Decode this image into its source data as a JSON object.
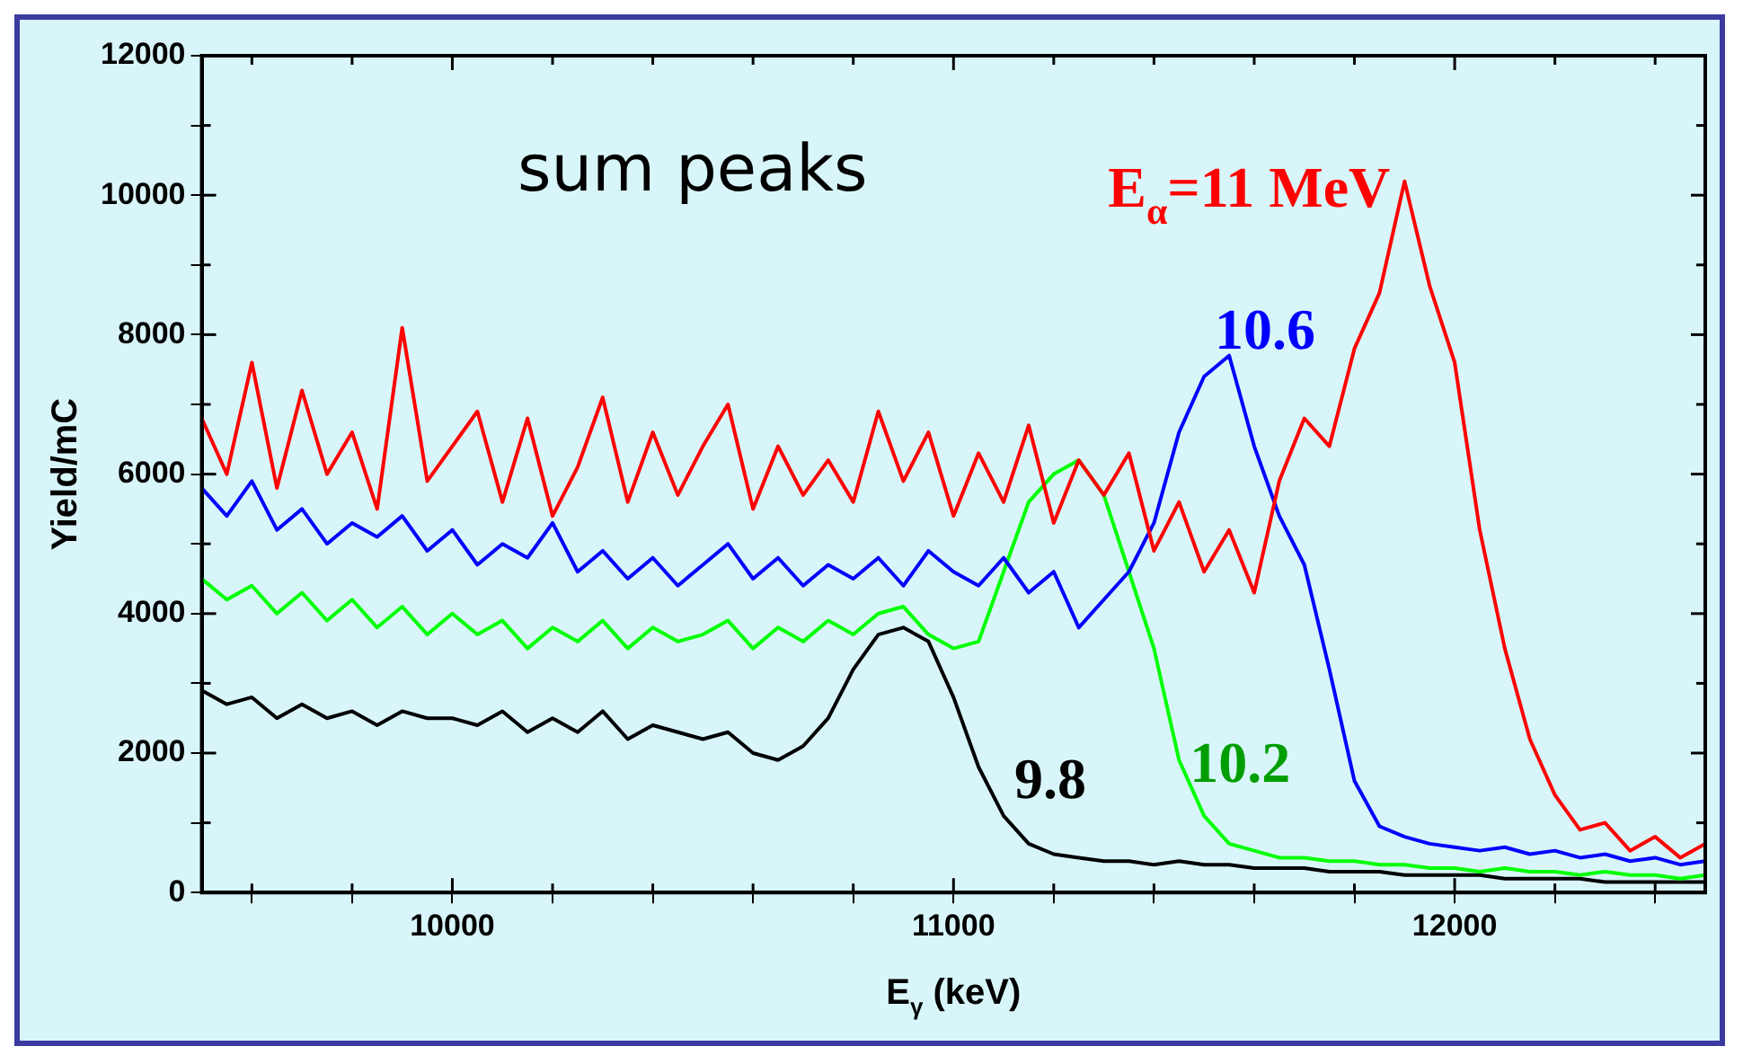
{
  "chart_data": {
    "type": "line",
    "title": "sum peaks",
    "xlabel": "E$_{γ}$ (keV)",
    "ylabel": "Yield/mC",
    "x": [
      9500,
      9550,
      9600,
      9650,
      9700,
      9750,
      9800,
      9850,
      9900,
      9950,
      10000,
      10050,
      10100,
      10150,
      10200,
      10250,
      10300,
      10350,
      10400,
      10450,
      10500,
      10550,
      10600,
      10650,
      10700,
      10750,
      10800,
      10850,
      10900,
      10950,
      11000,
      11050,
      11100,
      11150,
      11200,
      11250,
      11300,
      11350,
      11400,
      11450,
      11500,
      11550,
      11600,
      11650,
      11700,
      11750,
      11800,
      11850,
      11900,
      11950,
      12000,
      12050,
      12100,
      12150,
      12200,
      12250,
      12300,
      12350,
      12400,
      12450,
      12500
    ],
    "series": [
      {
        "name": "E$_{α}$=11 MeV",
        "color": "#ff0000",
        "values": [
          6800,
          6000,
          7600,
          5800,
          7200,
          6000,
          6600,
          5500,
          8100,
          5900,
          6400,
          6900,
          5600,
          6800,
          5400,
          6100,
          7100,
          5600,
          6600,
          5700,
          6400,
          7000,
          5500,
          6400,
          5700,
          6200,
          5600,
          6900,
          5900,
          6600,
          5400,
          6300,
          5600,
          6700,
          5300,
          6200,
          5700,
          6300,
          4900,
          5600,
          4600,
          5200,
          4300,
          5900,
          6800,
          6400,
          7800,
          8600,
          10200,
          8700,
          7600,
          5200,
          3500,
          2200,
          1400,
          900,
          1000,
          600,
          800,
          500,
          700
        ]
      },
      {
        "name": "10.6",
        "color": "#0000ff",
        "values": [
          5800,
          5400,
          5900,
          5200,
          5500,
          5000,
          5300,
          5100,
          5400,
          4900,
          5200,
          4700,
          5000,
          4800,
          5300,
          4600,
          4900,
          4500,
          4800,
          4400,
          4700,
          5000,
          4500,
          4800,
          4400,
          4700,
          4500,
          4800,
          4400,
          4900,
          4600,
          4400,
          4800,
          4300,
          4600,
          3800,
          4200,
          4600,
          5300,
          6600,
          7400,
          7700,
          6400,
          5400,
          4700,
          3200,
          1600,
          950,
          800,
          700,
          650,
          600,
          650,
          550,
          600,
          500,
          550,
          450,
          500,
          400,
          450
        ]
      },
      {
        "name": "10.2",
        "color": "#00ff00",
        "values": [
          4500,
          4200,
          4400,
          4000,
          4300,
          3900,
          4200,
          3800,
          4100,
          3700,
          4000,
          3700,
          3900,
          3500,
          3800,
          3600,
          3900,
          3500,
          3800,
          3600,
          3700,
          3900,
          3500,
          3800,
          3600,
          3900,
          3700,
          4000,
          4100,
          3700,
          3500,
          3600,
          4600,
          5600,
          6000,
          6200,
          5700,
          4600,
          3500,
          1900,
          1100,
          700,
          600,
          500,
          500,
          450,
          450,
          400,
          400,
          350,
          350,
          300,
          350,
          300,
          300,
          250,
          300,
          250,
          250,
          200,
          250
        ]
      },
      {
        "name": "9.8",
        "color": "#000000",
        "values": [
          2900,
          2700,
          2800,
          2500,
          2700,
          2500,
          2600,
          2400,
          2600,
          2500,
          2500,
          2400,
          2600,
          2300,
          2500,
          2300,
          2600,
          2200,
          2400,
          2300,
          2200,
          2300,
          2000,
          1900,
          2100,
          2500,
          3200,
          3700,
          3800,
          3600,
          2800,
          1800,
          1100,
          700,
          550,
          500,
          450,
          450,
          400,
          450,
          400,
          400,
          350,
          350,
          350,
          300,
          300,
          300,
          250,
          250,
          250,
          250,
          200,
          200,
          200,
          200,
          150,
          150,
          150,
          150,
          150
        ]
      }
    ],
    "xlim": [
      9500,
      12500
    ],
    "xticks": [
      {
        "value": 9600,
        "label": null
      },
      {
        "value": 9800,
        "label": null
      },
      10000,
      {
        "value": 10200,
        "label": null
      },
      {
        "value": 10400,
        "label": null
      },
      {
        "value": 10600,
        "label": null
      },
      {
        "value": 10800,
        "label": null
      },
      11000,
      {
        "value": 11200,
        "label": null
      },
      {
        "value": 11400,
        "label": null
      },
      {
        "value": 11600,
        "label": null
      },
      {
        "value": 11800,
        "label": null
      },
      12000,
      {
        "value": 12200,
        "label": null
      },
      {
        "value": 12400,
        "label": null
      }
    ],
    "ylim": [
      0,
      12000
    ],
    "yticks": [
      0,
      {
        "value": 1000,
        "label": null
      },
      2000,
      {
        "value": 3000,
        "label": null
      },
      4000,
      {
        "value": 5000,
        "label": null
      },
      6000,
      {
        "value": 7000,
        "label": null
      },
      8000,
      {
        "value": 9000,
        "label": null
      },
      10000,
      {
        "value": 11000,
        "label": null
      },
      12000
    ],
    "grid": false,
    "legend": false,
    "marker": "none",
    "line_style": "solid"
  }
}
